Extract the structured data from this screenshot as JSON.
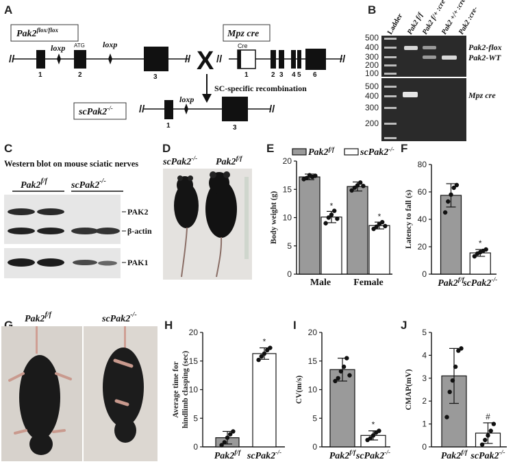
{
  "panels": {
    "A": {
      "label": "A",
      "flox_box": "Pak2",
      "flox_sup": "flox/flox",
      "loxp1": "loxp",
      "atg": "ATG",
      "loxp2": "loxp",
      "exons_flox": [
        "1",
        "2",
        "3"
      ],
      "cross": "X",
      "mpz_box": "Mpz cre",
      "cre": "Cre",
      "exons_mpz": [
        "1",
        "2",
        "3",
        "4",
        "5",
        "6"
      ],
      "recomb": "SC-specific recombination",
      "sc_box": "scPak2",
      "sc_sup": "-/-",
      "loxp3": "loxp",
      "exons_sc": [
        "1",
        "3"
      ]
    },
    "B": {
      "label": "B",
      "lanes": [
        "Ladder",
        "Pak2 f/f",
        "Pak2 f/+ :cre+",
        "Pak2 +/+ :cre-",
        "Pak2 :cre-"
      ],
      "ladder_top": [
        "500",
        "400",
        "300",
        "200",
        "100"
      ],
      "ladder_bot": [
        "500",
        "400",
        "300",
        "200"
      ],
      "band1": "Pak2-flox",
      "band2": "Pak2-WT",
      "band3": "Mpz cre"
    },
    "C": {
      "label": "C",
      "title": "Western blot on mouse sciatic nerves",
      "g1": "Pak2",
      "g1_sup": "f/f",
      "g2": "scPak2",
      "g2_sup": "-/-",
      "bands": [
        "PAK2",
        "β-actin",
        "PAK1"
      ]
    },
    "D": {
      "label": "D",
      "g1": "scPak2",
      "g1_sup": "-/-",
      "g2": "Pak2",
      "g2_sup": "f/f"
    },
    "G": {
      "label": "G",
      "g1": "Pak2",
      "g1_sup": "f/f",
      "g2": "scPak2",
      "g2_sup": "-/-"
    }
  },
  "chart_data": [
    {
      "panel": "E",
      "type": "bar",
      "ylabel": "Body weight (g)",
      "categories": [
        "Male",
        "Female"
      ],
      "legend": [
        "Pak2 f/f",
        "scPak2 -/-"
      ],
      "ylim": [
        0,
        20
      ],
      "yticks": [
        "0",
        "5",
        "10",
        "15",
        "20"
      ],
      "series": [
        {
          "name": "Pak2 f/f",
          "values": [
            17.2,
            15.5
          ],
          "sd": [
            0.5,
            0.8
          ],
          "points": [
            [
              16.8,
              17.0,
              17.5,
              17.2,
              17.4
            ],
            [
              14.8,
              15.3,
              15.7,
              16.2,
              15.6
            ]
          ],
          "color": "#9a9a9a"
        },
        {
          "name": "scPak2 -/-",
          "values": [
            10.1,
            8.6
          ],
          "sd": [
            1.0,
            0.6
          ],
          "points": [
            [
              9.0,
              10.0,
              10.5,
              11.2,
              9.8
            ],
            [
              8.0,
              8.4,
              8.9,
              9.2,
              8.5
            ]
          ],
          "color": "#ffffff"
        }
      ],
      "annotations": [
        "*",
        "*"
      ]
    },
    {
      "panel": "F",
      "type": "bar",
      "ylabel": "Latency to fall (s)",
      "categories": [
        "Pak2 f/f",
        "scPak2 -/-"
      ],
      "ylim": [
        0,
        80
      ],
      "yticks": [
        "0",
        "20",
        "40",
        "60",
        "80"
      ],
      "values": [
        57.5,
        15.5
      ],
      "sd": [
        8.5,
        2.5
      ],
      "points": [
        [
          45,
          53,
          58,
          63,
          65
        ],
        [
          13,
          15,
          16,
          17,
          18
        ]
      ],
      "colors": [
        "#9a9a9a",
        "#ffffff"
      ],
      "annotations": [
        "",
        "*"
      ]
    },
    {
      "panel": "H",
      "type": "bar",
      "ylabel": "Average time for hindlimb clasping (sec)",
      "categories": [
        "Pak2 f/f",
        "scPak2 -/-"
      ],
      "ylim": [
        0,
        20
      ],
      "yticks": [
        "0",
        "5",
        "10",
        "15",
        "20"
      ],
      "values": [
        1.6,
        16.3
      ],
      "sd": [
        1.1,
        1.0
      ],
      "points": [
        [
          0.3,
          0.8,
          1.6,
          2.2,
          2.7
        ],
        [
          15.2,
          15.8,
          16.3,
          16.9,
          17.3
        ]
      ],
      "colors": [
        "#9a9a9a",
        "#ffffff"
      ],
      "annotations": [
        "",
        "*"
      ]
    },
    {
      "panel": "I",
      "type": "bar",
      "ylabel": "CV(m/s)",
      "categories": [
        "Pak2 f/f",
        "scPak2 -/-"
      ],
      "ylim": [
        0,
        20
      ],
      "yticks": [
        "0",
        "5",
        "10",
        "15",
        "20"
      ],
      "values": [
        13.5,
        2.0
      ],
      "sd": [
        2.0,
        0.8
      ],
      "points": [
        [
          11.5,
          12.0,
          13.2,
          14.0,
          15.5,
          12.5
        ],
        [
          1.2,
          1.5,
          2.0,
          2.5,
          2.8
        ]
      ],
      "colors": [
        "#9a9a9a",
        "#ffffff"
      ],
      "annotations": [
        "",
        "*"
      ]
    },
    {
      "panel": "J",
      "type": "bar",
      "ylabel": "CMAP(mV)",
      "categories": [
        "Pak2 f/f",
        "scPak2 -/-"
      ],
      "ylim": [
        0,
        5
      ],
      "yticks": [
        "0",
        "1",
        "2",
        "3",
        "4",
        "5"
      ],
      "values": [
        3.1,
        0.6
      ],
      "sd": [
        1.2,
        0.45
      ],
      "points": [
        [
          1.3,
          2.4,
          2.9,
          3.5,
          4.2,
          4.3
        ],
        [
          0.1,
          0.3,
          0.5,
          0.7,
          1.0
        ]
      ],
      "colors": [
        "#9a9a9a",
        "#ffffff"
      ],
      "annotations": [
        "",
        "#"
      ]
    }
  ]
}
